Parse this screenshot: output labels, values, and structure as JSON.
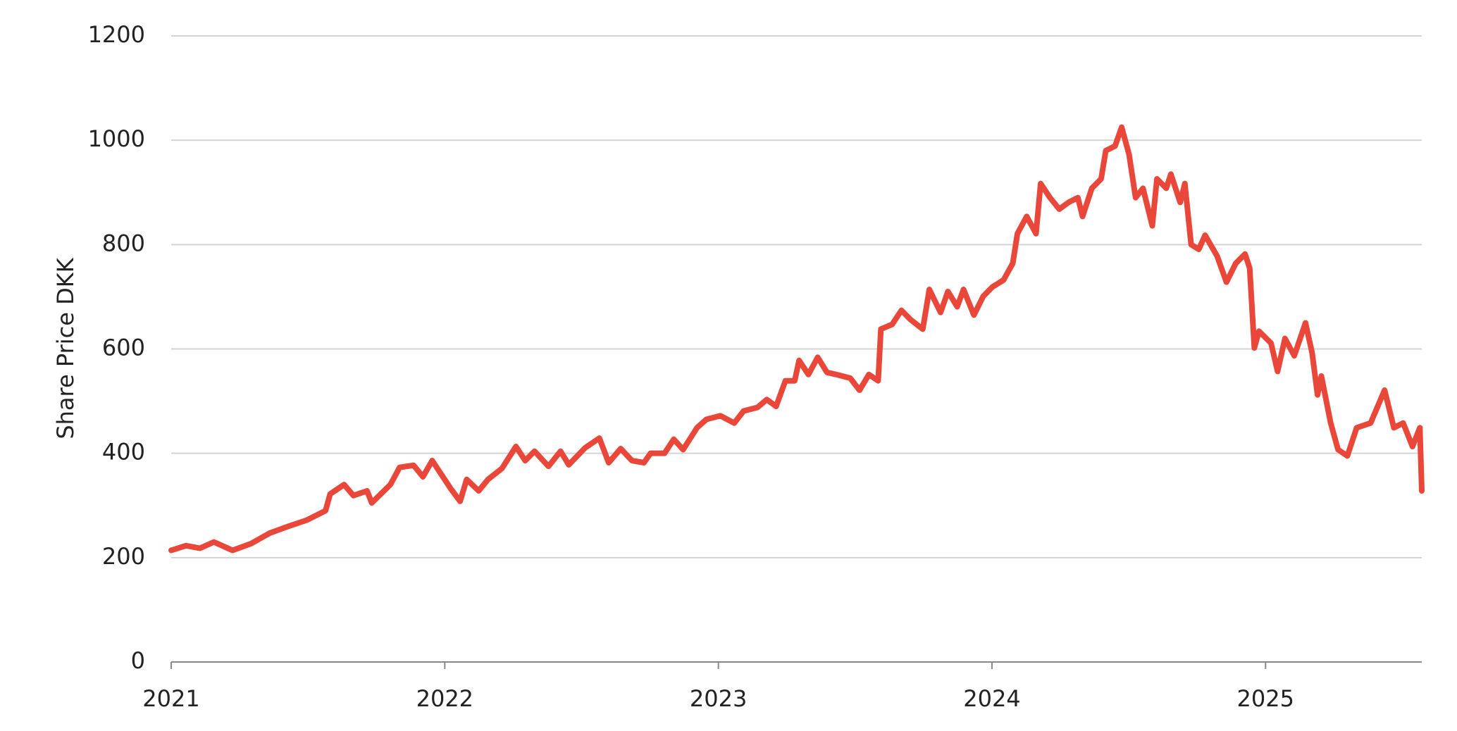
{
  "chart_data": {
    "type": "line",
    "y_label": "Share Price DKK",
    "xlim": [
      2021,
      2025.571
    ],
    "xticks": [
      2021,
      2022,
      2023,
      2024,
      2025
    ],
    "ylim": [
      0,
      1200
    ],
    "yticks": [
      0,
      200,
      400,
      600,
      800,
      1000,
      1200
    ],
    "grid": true,
    "x": [
      2021.0,
      2021.054,
      2021.105,
      2021.156,
      2021.224,
      2021.292,
      2021.36,
      2021.428,
      2021.496,
      2021.564,
      2021.581,
      2021.632,
      2021.666,
      2021.716,
      2021.733,
      2021.801,
      2021.835,
      2021.886,
      2021.92,
      2021.954,
      2021.988,
      2022.022,
      2022.056,
      2022.08,
      2022.124,
      2022.158,
      2022.209,
      2022.26,
      2022.294,
      2022.328,
      2022.379,
      2022.423,
      2022.453,
      2022.514,
      2022.565,
      2022.599,
      2022.643,
      2022.684,
      2022.728,
      2022.752,
      2022.803,
      2022.837,
      2022.871,
      2022.922,
      2022.956,
      2023.007,
      2023.058,
      2023.092,
      2023.143,
      2023.177,
      2023.211,
      2023.245,
      2023.279,
      2023.295,
      2023.329,
      2023.363,
      2023.397,
      2023.431,
      2023.482,
      2023.516,
      2023.55,
      2023.584,
      2023.594,
      2023.635,
      2023.669,
      2023.703,
      2023.747,
      2023.771,
      2023.812,
      2023.839,
      2023.873,
      2023.896,
      2023.934,
      2023.968,
      2024.002,
      2024.042,
      2024.076,
      2024.093,
      2024.127,
      2024.161,
      2024.178,
      2024.212,
      2024.246,
      2024.28,
      2024.314,
      2024.331,
      2024.365,
      2024.399,
      2024.416,
      2024.45,
      2024.474,
      2024.501,
      2024.525,
      2024.552,
      2024.586,
      2024.603,
      2024.637,
      2024.654,
      2024.688,
      2024.705,
      2024.728,
      2024.756,
      2024.779,
      2024.823,
      2024.857,
      2024.891,
      2024.925,
      2024.942,
      2024.959,
      2024.976,
      2025.02,
      2025.044,
      2025.071,
      2025.105,
      2025.146,
      2025.17,
      2025.19,
      2025.204,
      2025.238,
      2025.265,
      2025.299,
      2025.333,
      2025.384,
      2025.435,
      2025.469,
      2025.503,
      2025.537,
      2025.564,
      2025.571
    ],
    "series": [
      {
        "color": "#e8473a",
        "values": [
          214,
          223,
          218,
          230,
          214,
          227,
          247,
          260,
          272,
          290,
          322,
          340,
          319,
          328,
          305,
          340,
          373,
          377,
          355,
          386,
          359,
          332,
          308,
          350,
          328,
          350,
          371,
          413,
          386,
          404,
          375,
          404,
          378,
          411,
          429,
          382,
          409,
          386,
          382,
          400,
          400,
          427,
          407,
          449,
          465,
          472,
          458,
          481,
          488,
          503,
          490,
          539,
          539,
          578,
          551,
          584,
          555,
          551,
          544,
          521,
          551,
          539,
          638,
          647,
          674,
          656,
          638,
          714,
          670,
          710,
          681,
          714,
          665,
          701,
          719,
          732,
          764,
          821,
          854,
          821,
          917,
          890,
          868,
          881,
          890,
          854,
          908,
          926,
          980,
          989,
          1025,
          973,
          890,
          908,
          836,
          926,
          908,
          935,
          881,
          917,
          800,
          791,
          818,
          778,
          728,
          764,
          782,
          755,
          602,
          634,
          611,
          557,
          620,
          587,
          650,
          593,
          512,
          548,
          458,
          407,
          395,
          449,
          458,
          521,
          449,
          458,
          413,
          449,
          328
        ]
      }
    ]
  }
}
